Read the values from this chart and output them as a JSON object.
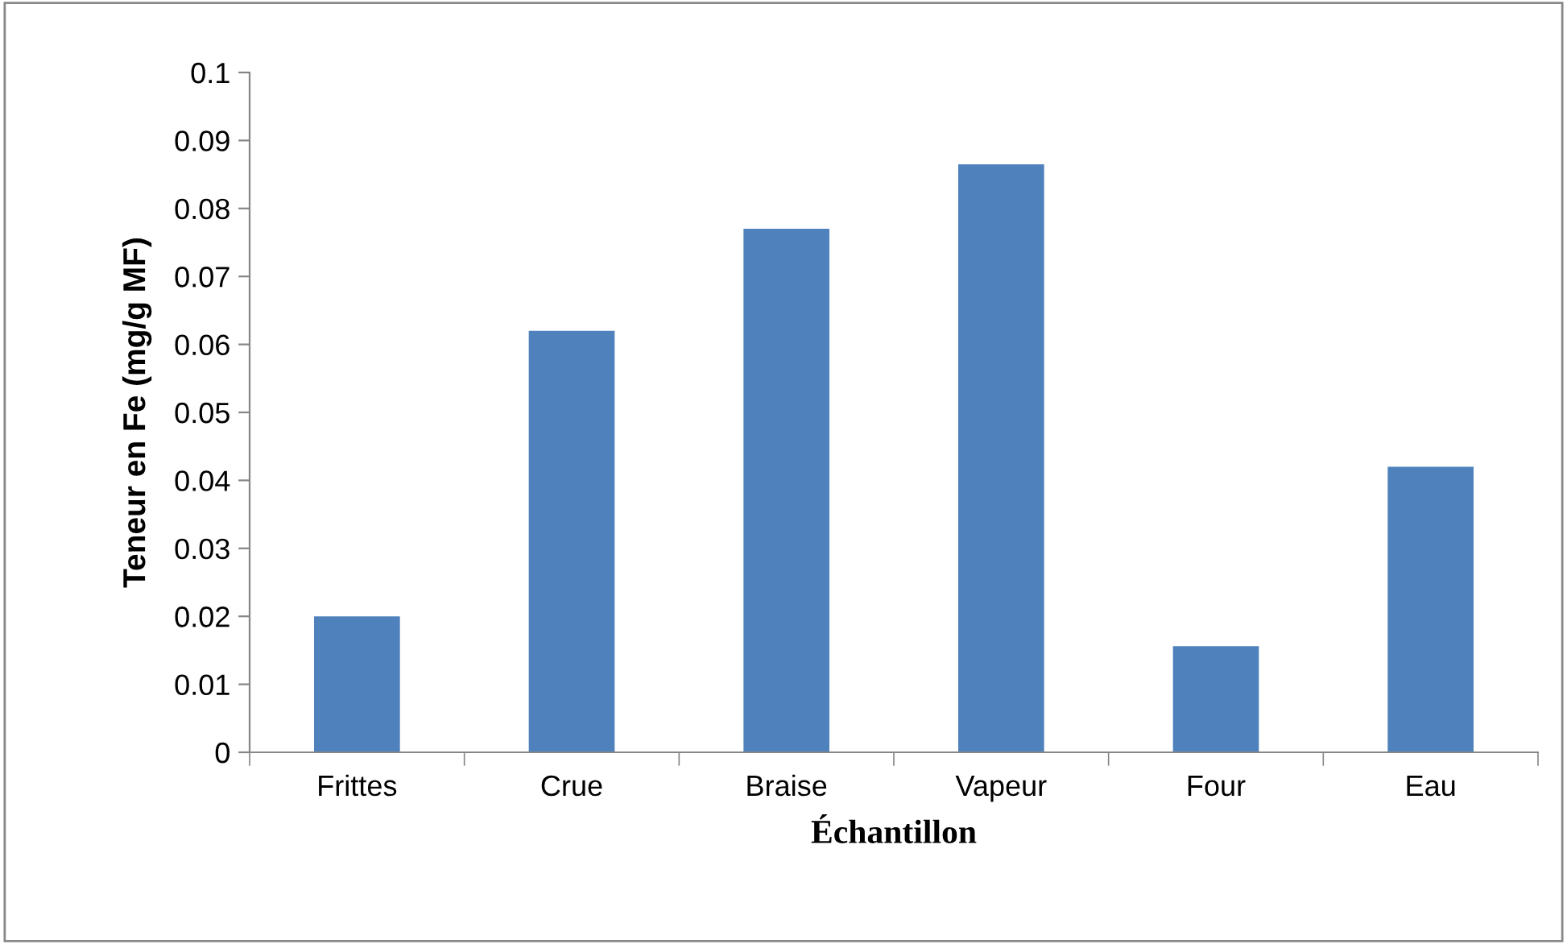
{
  "chart_data": {
    "type": "bar",
    "categories": [
      "Frittes",
      "Crue",
      "Braise",
      "Vapeur",
      "Four",
      "Eau"
    ],
    "values": [
      0.02,
      0.062,
      0.077,
      0.0865,
      0.0156,
      0.042
    ],
    "color": "#4f81bd",
    "xlabel": "Échantillon",
    "ylabel": "Teneur en Fe (mg/g MF)",
    "ylim": [
      0,
      0.1
    ],
    "yticks": [
      0,
      0.01,
      0.02,
      0.03,
      0.04,
      0.05,
      0.06,
      0.07,
      0.08,
      0.09,
      0.1
    ],
    "grid": false,
    "legend": false
  }
}
